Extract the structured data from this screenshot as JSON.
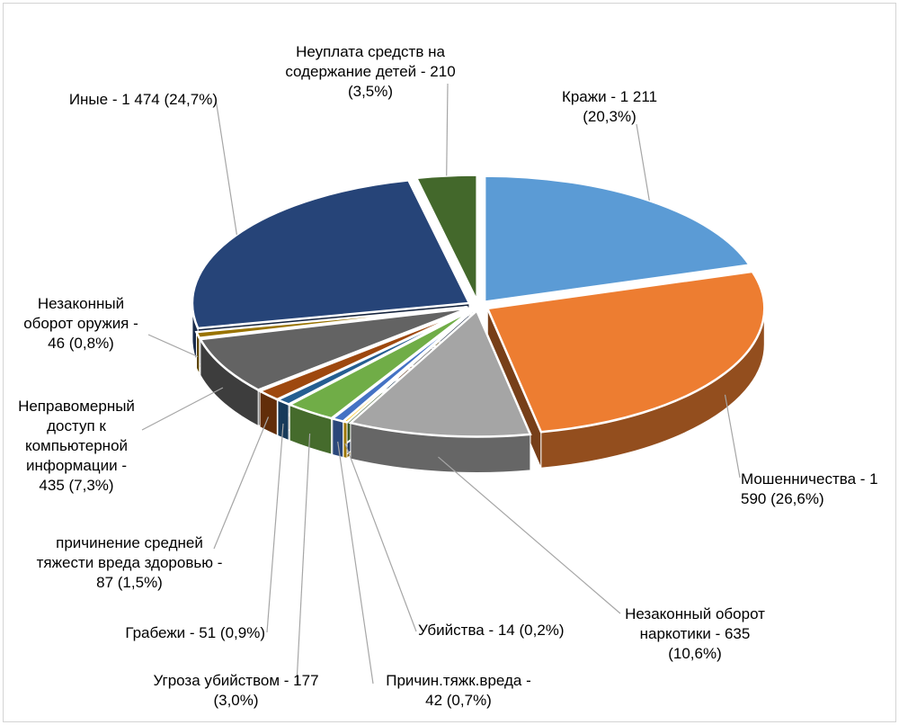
{
  "chart_data": {
    "type": "pie",
    "style": "3d-exploded",
    "title": "",
    "slices": [
      {
        "label": "Кражи - 1 211\n(20,3%)",
        "name": "Кражи",
        "value": 1211,
        "percent": 20.3,
        "color": "#5b9bd5"
      },
      {
        "label": "Мошенничества - 1\n590 (26,6%)",
        "name": "Мошенничества",
        "value": 1590,
        "percent": 26.6,
        "color": "#ed7d31"
      },
      {
        "label": "Незаконный оборот\nнаркотики - 635\n(10,6%)",
        "name": "Незаконный оборот наркотики",
        "value": 635,
        "percent": 10.6,
        "color": "#a5a5a5"
      },
      {
        "label": "Убийства - 14 (0,2%)",
        "name": "Убийства",
        "value": 14,
        "percent": 0.2,
        "color": "#ffc000"
      },
      {
        "label": "Причин.тяжк.вреда -\n42 (0,7%)",
        "name": "Причин.тяжк.вреда",
        "value": 42,
        "percent": 0.7,
        "color": "#4472c4"
      },
      {
        "label": "Угроза убийством - 177\n(3,0%)",
        "name": "Угроза убийством",
        "value": 177,
        "percent": 3.0,
        "color": "#70ad47"
      },
      {
        "label": "Грабежи - 51 (0,9%)",
        "name": "Грабежи",
        "value": 51,
        "percent": 0.9,
        "color": "#255e91"
      },
      {
        "label": "причинение средней\nтяжести вреда здоровью -\n87 (1,5%)",
        "name": "причинение средней тяжести вреда здоровью",
        "value": 87,
        "percent": 1.5,
        "color": "#9e480e"
      },
      {
        "label": "Неправомерный\nдоступ к\nкомпьютерной\nинформации -\n435 (7,3%)",
        "name": "Неправомерный доступ к компьютерной информации",
        "value": 435,
        "percent": 7.3,
        "color": "#636363"
      },
      {
        "label": "Незаконный\nоборот оружия -\n46 (0,8%)",
        "name": "Незаконный оборот оружия",
        "value": 46,
        "percent": 0.8,
        "color": "#997300"
      },
      {
        "label": "Иные - 1 474 (24,7%)",
        "name": "Иные",
        "value": 1474,
        "percent": 24.7,
        "color": "#264478"
      },
      {
        "label": "Неуплата средств на\nсодержание детей - 210\n(3,5%)",
        "name": "Неуплата средств на содержание детей",
        "value": 210,
        "percent": 3.5,
        "color": "#43682b"
      }
    ]
  }
}
